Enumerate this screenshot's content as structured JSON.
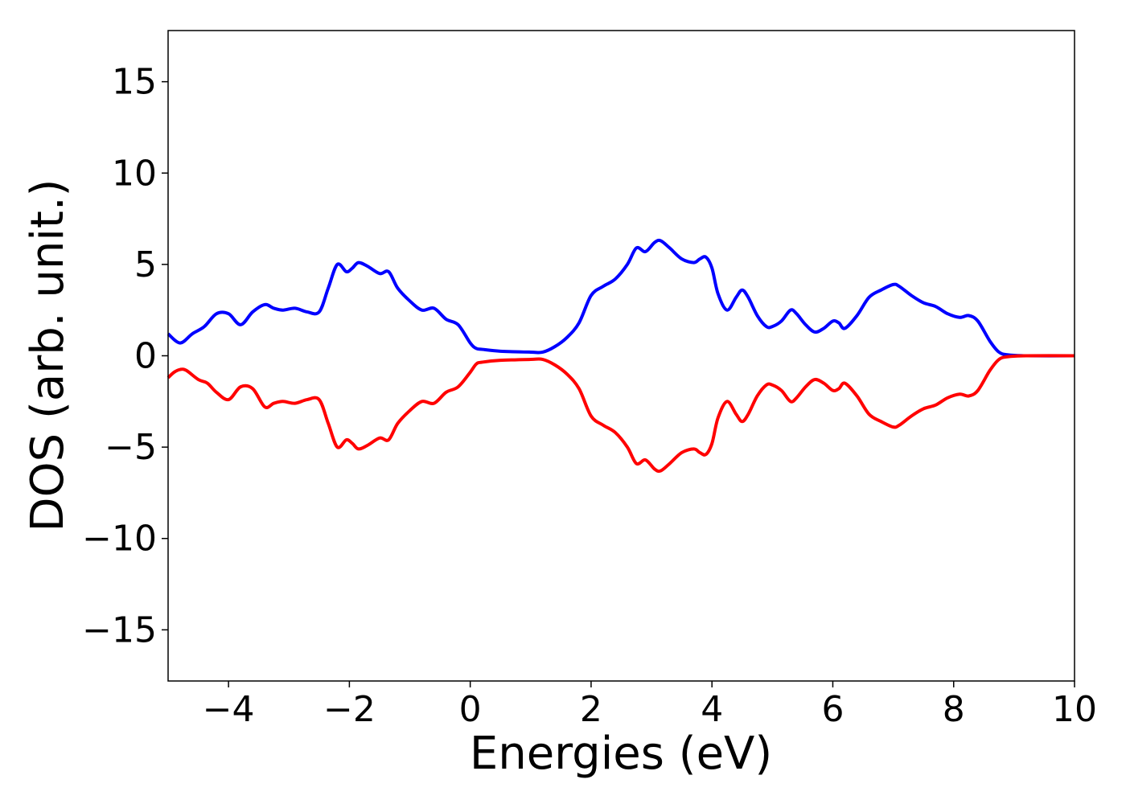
{
  "chart_data": {
    "type": "line",
    "title": "",
    "xlabel": "Energies (eV)",
    "ylabel": "DOS (arb. unit.)",
    "xlim": [
      -5,
      10
    ],
    "ylim": [
      -17.8,
      17.8
    ],
    "xticks": [
      -4,
      -2,
      0,
      2,
      4,
      6,
      8,
      10
    ],
    "xtick_labels": [
      "−4",
      "−2",
      "0",
      "2",
      "4",
      "6",
      "8",
      "10"
    ],
    "yticks": [
      15,
      10,
      5,
      0,
      -5,
      -10,
      -15
    ],
    "ytick_labels": [
      "15",
      "10",
      "5",
      "0",
      "−5",
      "−10",
      "−15"
    ],
    "grid": false,
    "legend": "none",
    "series": [
      {
        "color": "#0000ff",
        "x": [
          -5.0,
          -4.8,
          -4.6,
          -4.4,
          -4.2,
          -4.0,
          -3.8,
          -3.6,
          -3.4,
          -3.25,
          -3.1,
          -2.9,
          -2.7,
          -2.5,
          -2.35,
          -2.2,
          -2.05,
          -1.95,
          -1.85,
          -1.7,
          -1.5,
          -1.35,
          -1.2,
          -1.0,
          -0.8,
          -0.6,
          -0.4,
          -0.2,
          0.0,
          0.1,
          0.2,
          0.5,
          1.0,
          1.2,
          1.4,
          1.6,
          1.8,
          2.0,
          2.2,
          2.4,
          2.6,
          2.75,
          2.9,
          3.05,
          3.15,
          3.3,
          3.5,
          3.7,
          3.8,
          3.9,
          4.0,
          4.1,
          4.25,
          4.4,
          4.5,
          4.6,
          4.75,
          4.9,
          5.0,
          5.15,
          5.3,
          5.4,
          5.55,
          5.7,
          5.85,
          6.0,
          6.1,
          6.2,
          6.4,
          6.6,
          6.8,
          7.0,
          7.1,
          7.3,
          7.5,
          7.7,
          7.9,
          8.1,
          8.25,
          8.4,
          8.6,
          8.75,
          8.9,
          9.2,
          10.0
        ],
        "y": [
          1.2,
          0.7,
          1.2,
          1.6,
          2.3,
          2.3,
          1.7,
          2.4,
          2.8,
          2.6,
          2.5,
          2.6,
          2.4,
          2.4,
          3.7,
          5.0,
          4.6,
          4.8,
          5.1,
          4.9,
          4.5,
          4.6,
          3.7,
          3.0,
          2.5,
          2.6,
          2.0,
          1.7,
          0.7,
          0.4,
          0.35,
          0.25,
          0.2,
          0.2,
          0.5,
          1.0,
          1.8,
          3.3,
          3.8,
          4.2,
          5.0,
          5.9,
          5.7,
          6.2,
          6.3,
          5.9,
          5.3,
          5.1,
          5.3,
          5.4,
          4.8,
          3.4,
          2.5,
          3.2,
          3.6,
          3.2,
          2.2,
          1.6,
          1.6,
          1.9,
          2.5,
          2.3,
          1.7,
          1.3,
          1.5,
          1.9,
          1.8,
          1.5,
          2.2,
          3.2,
          3.6,
          3.9,
          3.8,
          3.3,
          2.9,
          2.7,
          2.3,
          2.1,
          2.2,
          1.9,
          0.8,
          0.2,
          0.05,
          0.0,
          0.0
        ]
      },
      {
        "color": "#ff0000",
        "x": [
          -5.0,
          -4.9,
          -4.8,
          -4.7,
          -4.5,
          -4.35,
          -4.2,
          -4.0,
          -3.8,
          -3.6,
          -3.4,
          -3.25,
          -3.1,
          -2.9,
          -2.7,
          -2.5,
          -2.35,
          -2.2,
          -2.05,
          -1.95,
          -1.85,
          -1.7,
          -1.5,
          -1.35,
          -1.2,
          -1.0,
          -0.8,
          -0.6,
          -0.4,
          -0.2,
          0.0,
          0.1,
          0.2,
          0.5,
          1.0,
          1.2,
          1.4,
          1.6,
          1.8,
          2.0,
          2.2,
          2.4,
          2.6,
          2.75,
          2.9,
          3.05,
          3.15,
          3.3,
          3.5,
          3.7,
          3.8,
          3.9,
          4.0,
          4.1,
          4.25,
          4.4,
          4.5,
          4.6,
          4.75,
          4.9,
          5.0,
          5.15,
          5.3,
          5.4,
          5.55,
          5.7,
          5.85,
          6.0,
          6.1,
          6.2,
          6.4,
          6.6,
          6.8,
          7.0,
          7.1,
          7.3,
          7.5,
          7.7,
          7.9,
          8.1,
          8.25,
          8.4,
          8.6,
          8.75,
          8.9,
          9.2,
          10.0
        ],
        "y": [
          -1.2,
          -0.9,
          -0.75,
          -0.8,
          -1.3,
          -1.5,
          -2.0,
          -2.4,
          -1.7,
          -1.8,
          -2.8,
          -2.6,
          -2.5,
          -2.6,
          -2.4,
          -2.4,
          -3.7,
          -5.0,
          -4.6,
          -4.8,
          -5.1,
          -4.9,
          -4.5,
          -4.6,
          -3.7,
          -3.0,
          -2.5,
          -2.6,
          -2.0,
          -1.7,
          -0.9,
          -0.45,
          -0.35,
          -0.25,
          -0.2,
          -0.2,
          -0.5,
          -1.0,
          -1.8,
          -3.3,
          -3.8,
          -4.2,
          -5.0,
          -5.9,
          -5.7,
          -6.2,
          -6.3,
          -5.9,
          -5.3,
          -5.1,
          -5.3,
          -5.4,
          -4.8,
          -3.4,
          -2.5,
          -3.2,
          -3.6,
          -3.2,
          -2.2,
          -1.6,
          -1.6,
          -1.9,
          -2.5,
          -2.3,
          -1.7,
          -1.3,
          -1.5,
          -1.9,
          -1.8,
          -1.5,
          -2.2,
          -3.2,
          -3.6,
          -3.9,
          -3.8,
          -3.3,
          -2.9,
          -2.7,
          -2.3,
          -2.1,
          -2.2,
          -1.9,
          -0.8,
          -0.2,
          -0.05,
          0.0,
          0.0
        ]
      }
    ]
  }
}
